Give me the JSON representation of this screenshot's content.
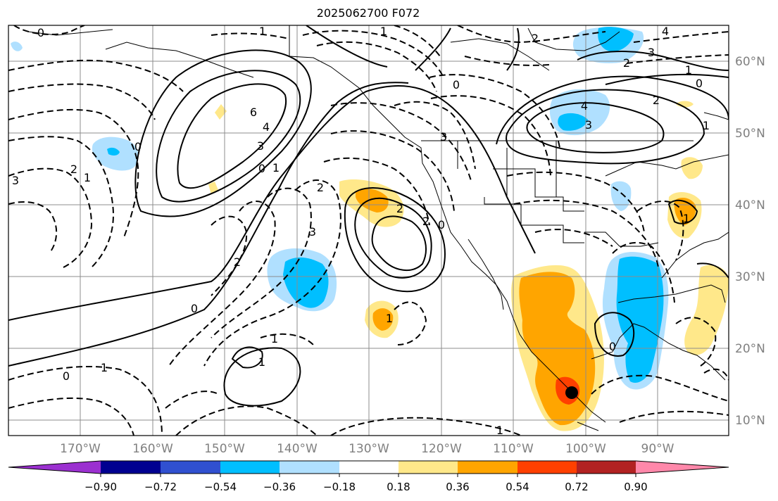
{
  "title": "2025062700 F072",
  "lon_labels": [
    "170°W",
    "160°W",
    "150°W",
    "140°W",
    "130°W",
    "120°W",
    "110°W",
    "100°W",
    "90°W"
  ],
  "lat_labels": [
    "60°N",
    "50°N",
    "40°N",
    "30°N",
    "20°N",
    "10°N"
  ],
  "colorbar": {
    "tick_labels": [
      "−0.90",
      "−0.72",
      "−0.54",
      "−0.36",
      "−0.18",
      "0.18",
      "0.36",
      "0.54",
      "0.72",
      "0.90"
    ],
    "colors": [
      "#9b30d0",
      "#000090",
      "#3050d0",
      "#00bfff",
      "#b0e0ff",
      "#ffffff",
      "#ffe88a",
      "#ffa500",
      "#ff4000",
      "#b22222",
      "#ff88aa"
    ]
  },
  "contour_labels": [
    {
      "text": "0"
    },
    {
      "text": "1"
    },
    {
      "text": "2"
    },
    {
      "text": "4"
    },
    {
      "text": "3"
    },
    {
      "text": "2"
    },
    {
      "text": "1"
    },
    {
      "text": "0"
    },
    {
      "text": "6"
    },
    {
      "text": "4"
    },
    {
      "text": "3"
    },
    {
      "text": "0"
    },
    {
      "text": "1"
    },
    {
      "text": "3"
    },
    {
      "text": "2"
    },
    {
      "text": "1"
    },
    {
      "text": "0"
    },
    {
      "text": "2"
    },
    {
      "text": "3"
    },
    {
      "text": "2"
    },
    {
      "text": "3"
    },
    {
      "text": "2"
    },
    {
      "text": "0"
    },
    {
      "text": "1"
    },
    {
      "text": "2"
    },
    {
      "text": "0"
    },
    {
      "text": "1"
    },
    {
      "text": "1"
    },
    {
      "text": "0"
    },
    {
      "text": "1"
    },
    {
      "text": "0"
    },
    {
      "text": "1"
    },
    {
      "text": "4"
    },
    {
      "text": "3"
    },
    {
      "text": "2"
    },
    {
      "text": "1"
    },
    {
      "text": "0"
    },
    {
      "text": "1"
    },
    {
      "text": "1"
    }
  ],
  "marker": {
    "color": "#000000"
  }
}
